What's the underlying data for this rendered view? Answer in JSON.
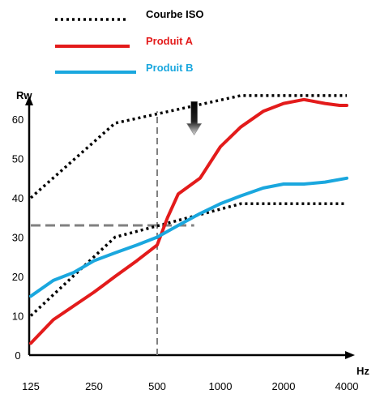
{
  "chart_data": {
    "type": "line",
    "xlabel": "Hz",
    "ylabel": "Rw",
    "x_ticks": [
      "125",
      "250",
      "500",
      "1000",
      "2000",
      "4000"
    ],
    "y_ticks": [
      0,
      10,
      20,
      30,
      40,
      50,
      60
    ],
    "ylim": [
      0,
      68
    ],
    "x_scale": "log2 (octave bands)",
    "grid": false,
    "legend_position": "top-left",
    "series": [
      {
        "name": "Courbe ISO",
        "style": "dotted",
        "color": "#000000",
        "x": [
          125,
          315,
          1250,
          4000
        ],
        "y": [
          40,
          59,
          66,
          66
        ]
      },
      {
        "name": "",
        "style": "dotted",
        "color": "#000000",
        "x": [
          125,
          315,
          1250,
          4000
        ],
        "y": [
          10,
          30,
          38.5,
          38.5
        ]
      },
      {
        "name": "Produit A",
        "style": "solid",
        "color": "#e31b1b",
        "x": [
          125,
          160,
          200,
          250,
          315,
          400,
          500,
          560,
          630,
          800,
          1000,
          1250,
          1600,
          2000,
          2500,
          3150,
          3700,
          4000
        ],
        "y": [
          3,
          9,
          12.5,
          16,
          20,
          24,
          28,
          35,
          41,
          45,
          53,
          58,
          62,
          64,
          65,
          64,
          63.5,
          63.5
        ]
      },
      {
        "name": "Produit B",
        "style": "solid",
        "color": "#1aa7de",
        "x": [
          125,
          160,
          200,
          250,
          315,
          400,
          500,
          630,
          800,
          1000,
          1250,
          1600,
          2000,
          2500,
          3150,
          4000
        ],
        "y": [
          15,
          19,
          21,
          24,
          26,
          28,
          30,
          33,
          36,
          38.5,
          40.5,
          42.5,
          43.5,
          43.5,
          44,
          45
        ]
      }
    ],
    "reference_lines": [
      {
        "style": "dashed",
        "color": "#808080",
        "x": 500,
        "from_y": 0,
        "to_y": 62
      },
      {
        "style": "dashed",
        "color": "#808080",
        "y": 33,
        "from_x": 125,
        "to_x": 750
      }
    ],
    "annotations": [
      {
        "type": "arrow-down",
        "x": 750,
        "from_y": 64.5,
        "to_y": 56
      }
    ]
  }
}
